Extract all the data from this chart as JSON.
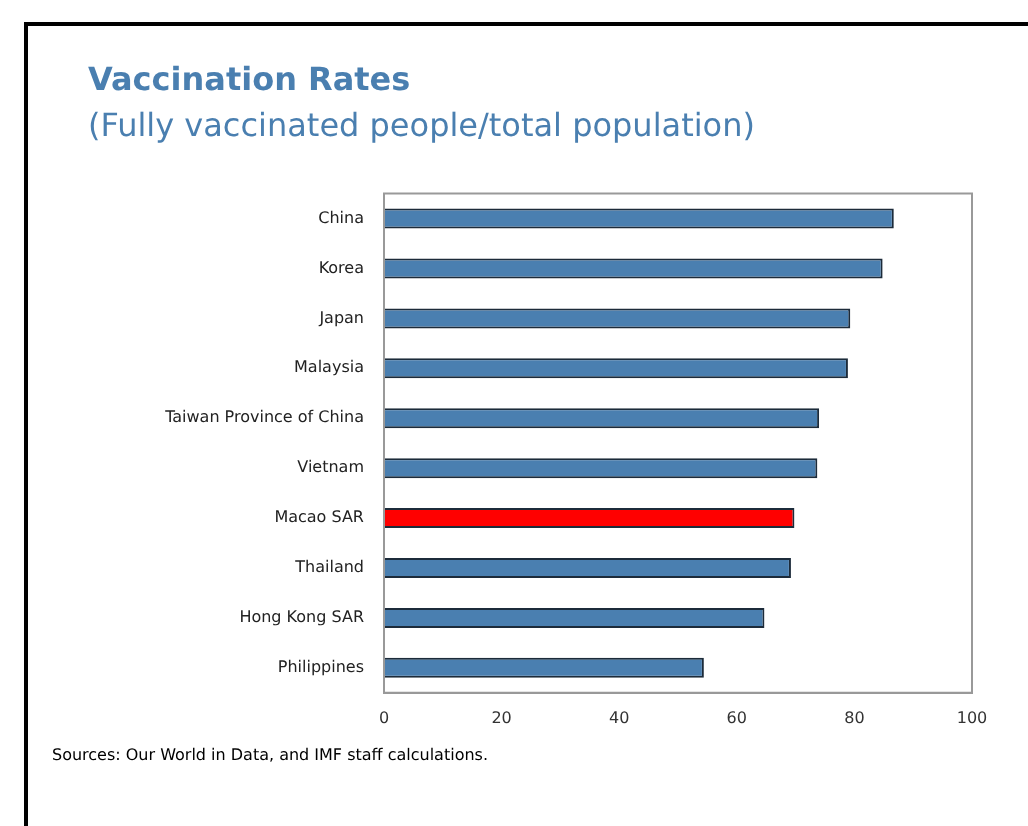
{
  "chart_data": {
    "type": "bar",
    "orientation": "horizontal",
    "title": "Vaccination Rates",
    "subtitle": "(Fully vaccinated people/total population)",
    "categories": [
      "China",
      "Korea",
      "Japan",
      "Malaysia",
      "Taiwan Province of China",
      "Vietnam",
      "Macao SAR",
      "Thailand",
      "Hong Kong SAR",
      "Philippines"
    ],
    "values": [
      86.7,
      84.8,
      79.3,
      78.9,
      74.0,
      73.7,
      69.8,
      69.2,
      64.7,
      54.4
    ],
    "colors": [
      "#4a7fb0",
      "#4a7fb0",
      "#4a7fb0",
      "#4a7fb0",
      "#4a7fb0",
      "#4a7fb0",
      "#ff0000",
      "#4a7fb0",
      "#4a7fb0",
      "#4a7fb0"
    ],
    "xlim": [
      0,
      100
    ],
    "xticks": [
      0,
      20,
      40,
      60,
      80,
      100
    ],
    "grid": false,
    "legend": false,
    "annotations": [
      "Sources: Our World in Data, and IMF staff calculations."
    ]
  }
}
